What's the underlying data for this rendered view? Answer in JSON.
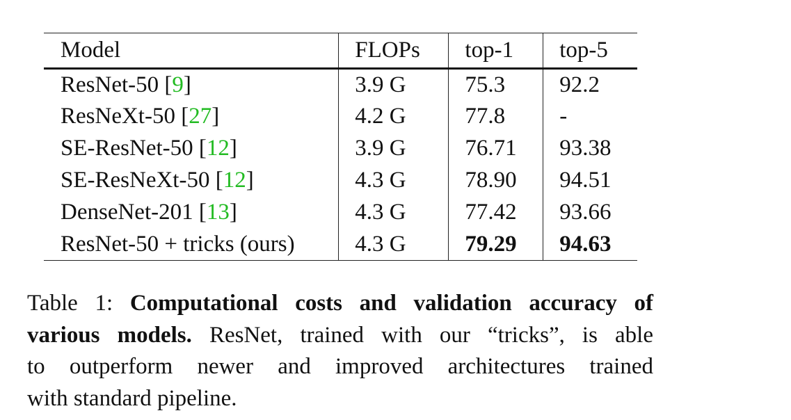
{
  "table": {
    "headers": {
      "model": "Model",
      "flops": "FLOPs",
      "top1": "top-1",
      "top5": "top-5"
    },
    "rows": [
      {
        "model": "ResNet-50",
        "cite": "9",
        "flops": "3.9 G",
        "top1": "75.3",
        "top5": "92.2",
        "bold": false
      },
      {
        "model": "ResNeXt-50",
        "cite": "27",
        "flops": "4.2 G",
        "top1": "77.8",
        "top5": "-",
        "bold": false
      },
      {
        "model": "SE-ResNet-50",
        "cite": "12",
        "flops": "3.9 G",
        "top1": "76.71",
        "top5": "93.38",
        "bold": false
      },
      {
        "model": "SE-ResNeXt-50",
        "cite": "12",
        "flops": "4.3 G",
        "top1": "78.90",
        "top5": "94.51",
        "bold": false
      },
      {
        "model": "DenseNet-201",
        "cite": "13",
        "flops": "4.3 G",
        "top1": "77.42",
        "top5": "93.66",
        "bold": false
      },
      {
        "model": "ResNet-50 + tricks (ours)",
        "cite": "",
        "flops": "4.3 G",
        "top1": "79.29",
        "top5": "94.63",
        "bold": true
      }
    ]
  },
  "caption": {
    "label": "Table 1:",
    "bold_title": "Computational costs and validation accuracy of various models.",
    "line1_bold": "Computational costs and validation accuracy of",
    "line2_bold": "various models.",
    "line2_rest": "ResNet, trained with our “tricks”, is able",
    "line3": "to outperform newer and improved architectures trained",
    "line4": "with standard pipeline."
  }
}
